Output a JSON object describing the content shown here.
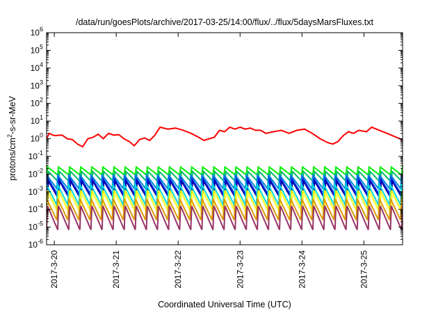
{
  "chart_data": {
    "type": "line",
    "title": "/data/run/goesPlots/archive/2017-03-25/14:00/flux/../flux/5daysMarsFluxes.txt",
    "xlabel": "Coordinated Universal Time (UTC)",
    "ylabel": {
      "base": "protons/cm",
      "sup": "2",
      "rest": "-s-sr-MeV"
    },
    "x_range": [
      "2017-03-19T21:00",
      "2017-03-25T15:00"
    ],
    "x_ticks": [
      "2017-3-20",
      "2017-3-21",
      "2017-3-22",
      "2017-3-23",
      "2017-3-24",
      "2017-3-25"
    ],
    "y_scale": "log",
    "y_range": [
      1e-06,
      1000000.0
    ],
    "y_ticks": [
      {
        "base": "10",
        "exp": "-6"
      },
      {
        "base": "10",
        "exp": "-5"
      },
      {
        "base": "10",
        "exp": "-4"
      },
      {
        "base": "10",
        "exp": "-3"
      },
      {
        "base": "10",
        "exp": "-2"
      },
      {
        "base": "10",
        "exp": "-1"
      },
      {
        "base": "10",
        "exp": "0"
      },
      {
        "base": "10",
        "exp": "1"
      },
      {
        "base": "10",
        "exp": "2"
      },
      {
        "base": "10",
        "exp": "3"
      },
      {
        "base": "10",
        "exp": "4"
      },
      {
        "base": "10",
        "exp": "5"
      },
      {
        "base": "10",
        "exp": "6"
      }
    ],
    "grid": false,
    "legend": "none",
    "sawtooth_period_hours": 4.3,
    "series": [
      {
        "color": "#ff0000",
        "points": [
          [
            "2017-03-19T21:00",
            1.0
          ],
          [
            "2017-03-19T22:00",
            2.0
          ],
          [
            "2017-03-20T00:00",
            1.5
          ],
          [
            "2017-03-20T03:00",
            1.6
          ],
          [
            "2017-03-20T05:00",
            1.0
          ],
          [
            "2017-03-20T07:00",
            0.9
          ],
          [
            "2017-03-20T09:00",
            0.5
          ],
          [
            "2017-03-20T11:00",
            0.35
          ],
          [
            "2017-03-20T13:00",
            1.0
          ],
          [
            "2017-03-20T15:00",
            1.2
          ],
          [
            "2017-03-20T17:00",
            1.8
          ],
          [
            "2017-03-20T19:00",
            1.0
          ],
          [
            "2017-03-20T21:00",
            2.0
          ],
          [
            "2017-03-20T23:00",
            1.6
          ],
          [
            "2017-03-21T01:00",
            1.7
          ],
          [
            "2017-03-21T03:00",
            1.0
          ],
          [
            "2017-03-21T05:00",
            0.7
          ],
          [
            "2017-03-21T07:00",
            0.4
          ],
          [
            "2017-03-21T09:00",
            0.9
          ],
          [
            "2017-03-21T11:00",
            1.1
          ],
          [
            "2017-03-21T13:00",
            0.8
          ],
          [
            "2017-03-21T15:00",
            1.6
          ],
          [
            "2017-03-21T17:00",
            4.5
          ],
          [
            "2017-03-21T20:00",
            3.5
          ],
          [
            "2017-03-21T23:00",
            4.0
          ],
          [
            "2017-03-22T02:00",
            3.0
          ],
          [
            "2017-03-22T05:00",
            2.0
          ],
          [
            "2017-03-22T08:00",
            1.2
          ],
          [
            "2017-03-22T10:00",
            0.8
          ],
          [
            "2017-03-22T12:00",
            1.0
          ],
          [
            "2017-03-22T14:00",
            1.2
          ],
          [
            "2017-03-22T16:00",
            3.0
          ],
          [
            "2017-03-22T18:00",
            2.5
          ],
          [
            "2017-03-22T20:00",
            4.5
          ],
          [
            "2017-03-22T22:00",
            3.5
          ],
          [
            "2017-03-23T00:00",
            4.5
          ],
          [
            "2017-03-23T02:00",
            3.5
          ],
          [
            "2017-03-23T04:00",
            4.0
          ],
          [
            "2017-03-23T06:00",
            3.0
          ],
          [
            "2017-03-23T08:00",
            3.0
          ],
          [
            "2017-03-23T10:00",
            2.0
          ],
          [
            "2017-03-23T13:00",
            2.5
          ],
          [
            "2017-03-23T16:00",
            3.0
          ],
          [
            "2017-03-23T19:00",
            2.0
          ],
          [
            "2017-03-23T22:00",
            3.0
          ],
          [
            "2017-03-24T01:00",
            3.5
          ],
          [
            "2017-03-24T04:00",
            2.0
          ],
          [
            "2017-03-24T07:00",
            1.0
          ],
          [
            "2017-03-24T10:00",
            0.6
          ],
          [
            "2017-03-24T12:00",
            0.5
          ],
          [
            "2017-03-24T14:00",
            0.7
          ],
          [
            "2017-03-24T16:00",
            1.5
          ],
          [
            "2017-03-24T18:00",
            2.5
          ],
          [
            "2017-03-24T20:00",
            2.0
          ],
          [
            "2017-03-24T22:00",
            3.0
          ],
          [
            "2017-03-25T01:00",
            2.5
          ],
          [
            "2017-03-25T03:00",
            4.5
          ],
          [
            "2017-03-25T06:00",
            3.0
          ],
          [
            "2017-03-25T09:00",
            2.0
          ],
          [
            "2017-03-25T12:00",
            1.3
          ],
          [
            "2017-03-25T14:00",
            1.0
          ],
          [
            "2017-03-25T15:00",
            0.8
          ]
        ]
      },
      {
        "color": "#00ee00",
        "peak": 0.025,
        "trough": 0.009
      },
      {
        "color": "#00bb66",
        "peak": 0.014,
        "trough": 0.0035
      },
      {
        "color": "#0088dd",
        "peak": 0.009,
        "trough": 0.0015
      },
      {
        "color": "#1144ee",
        "peak": 0.006,
        "trough": 0.0007
      },
      {
        "color": "#0000aa",
        "peak": 0.004,
        "trough": 0.0004
      },
      {
        "color": "#00dddd",
        "peak": 0.0025,
        "trough": 0.00018
      },
      {
        "color": "#eeee00",
        "peak": 0.0012,
        "trough": 8e-05
      },
      {
        "color": "#ffff66",
        "peak": 0.0008,
        "trough": 5e-05
      },
      {
        "color": "#dd9900",
        "peak": 0.0004,
        "trough": 2.5e-05
      },
      {
        "color": "#993366",
        "peak": 0.00016,
        "trough": 7e-06
      }
    ]
  }
}
